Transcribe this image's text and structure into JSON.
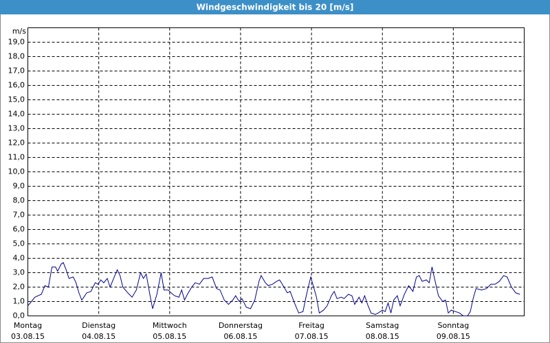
{
  "chart_data": {
    "type": "line",
    "title": "Windgeschwindigkeit bis 20 [m/s]",
    "y_label": "m/s",
    "xlim": [
      0,
      7
    ],
    "xticks": [
      {
        "value": 0,
        "label": "Montag",
        "date": "03.08.15"
      },
      {
        "value": 1,
        "label": "Dienstag",
        "date": "04.08.15"
      },
      {
        "value": 2,
        "label": "Mittwoch",
        "date": "05.08.15"
      },
      {
        "value": 3,
        "label": "Donnerstag",
        "date": "06.08.15"
      },
      {
        "value": 4,
        "label": "Freitag",
        "date": "07.08.15"
      },
      {
        "value": 5,
        "label": "Samstag",
        "date": "08.08.15"
      },
      {
        "value": 6,
        "label": "Sonntag",
        "date": "09.08.15"
      }
    ],
    "ylim": [
      0,
      20
    ],
    "yticks": [
      {
        "value": 0,
        "label": "0,0"
      },
      {
        "value": 1,
        "label": "1,0"
      },
      {
        "value": 2,
        "label": "2,0"
      },
      {
        "value": 3,
        "label": "3,0"
      },
      {
        "value": 4,
        "label": "4,0"
      },
      {
        "value": 5,
        "label": "5,0"
      },
      {
        "value": 6,
        "label": "6,0"
      },
      {
        "value": 7,
        "label": "7,0"
      },
      {
        "value": 8,
        "label": "8,0"
      },
      {
        "value": 9,
        "label": "9,0"
      },
      {
        "value": 10,
        "label": "10,0"
      },
      {
        "value": 11,
        "label": "11,0"
      },
      {
        "value": 12,
        "label": "12,0"
      },
      {
        "value": 13,
        "label": "13,0"
      },
      {
        "value": 14,
        "label": "14,0"
      },
      {
        "value": 15,
        "label": "15,0"
      },
      {
        "value": 16,
        "label": "16,0"
      },
      {
        "value": 17,
        "label": "17,0"
      },
      {
        "value": 18,
        "label": "18,0"
      },
      {
        "value": 19,
        "label": "19,0"
      }
    ],
    "grid": true,
    "series": [
      {
        "color": "#00008b",
        "x": [
          0,
          0.05,
          0.1,
          0.19,
          0.24,
          0.29,
          0.34,
          0.39,
          0.42,
          0.47,
          0.5,
          0.54,
          0.58,
          0.64,
          0.68,
          0.72,
          0.76,
          0.79,
          0.83,
          0.89,
          0.95,
          0.99,
          1.03,
          1.07,
          1.12,
          1.16,
          1.21,
          1.26,
          1.3,
          1.34,
          1.41,
          1.47,
          1.53,
          1.59,
          1.63,
          1.67,
          1.72,
          1.76,
          1.82,
          1.88,
          1.92,
          1.98,
          2.02,
          2.07,
          2.13,
          2.17,
          2.21,
          2.25,
          2.31,
          2.36,
          2.42,
          2.48,
          2.54,
          2.6,
          2.66,
          2.71,
          2.77,
          2.83,
          2.89,
          2.93,
          2.98,
          3.02,
          3.08,
          3.14,
          3.2,
          3.26,
          3.29,
          3.35,
          3.39,
          3.45,
          3.51,
          3.55,
          3.6,
          3.66,
          3.7,
          3.76,
          3.82,
          3.88,
          3.93,
          3.99,
          4.03,
          4.07,
          4.11,
          4.17,
          4.22,
          4.28,
          4.32,
          4.36,
          4.42,
          4.46,
          4.52,
          4.57,
          4.61,
          4.67,
          4.71,
          4.75,
          4.79,
          4.84,
          4.9,
          4.94,
          5.0,
          5.04,
          5.08,
          5.12,
          5.16,
          5.21,
          5.25,
          5.31,
          5.37,
          5.43,
          5.48,
          5.52,
          5.56,
          5.62,
          5.66,
          5.7,
          5.74,
          5.79,
          5.85,
          5.89,
          5.93,
          5.97,
          6.03,
          6.09,
          6.14,
          6.2,
          6.24,
          6.28,
          6.32,
          6.4,
          6.47,
          6.53,
          6.59,
          6.65,
          6.71,
          6.76,
          6.82,
          6.88,
          6.94
        ],
        "values": [
          0.7,
          1.0,
          1.3,
          1.5,
          2.1,
          2.0,
          3.4,
          3.4,
          3.1,
          3.6,
          3.7,
          3.2,
          2.6,
          2.7,
          2.3,
          1.6,
          1.1,
          1.3,
          1.6,
          1.7,
          2.3,
          2.2,
          2.5,
          2.3,
          2.6,
          2.0,
          2.6,
          3.2,
          2.8,
          2.0,
          1.6,
          1.3,
          1.8,
          3.0,
          2.6,
          2.9,
          1.5,
          0.5,
          1.5,
          3.0,
          1.8,
          1.8,
          1.6,
          1.4,
          1.3,
          1.8,
          1.1,
          1.5,
          2.0,
          2.3,
          2.2,
          2.6,
          2.6,
          2.7,
          1.9,
          1.8,
          1.1,
          0.8,
          1.1,
          1.4,
          1.0,
          1.2,
          0.6,
          0.5,
          1.1,
          2.4,
          2.8,
          2.3,
          2.1,
          2.2,
          2.4,
          2.5,
          2.1,
          1.6,
          1.7,
          0.9,
          0.2,
          0.3,
          1.5,
          2.7,
          2.0,
          1.3,
          0.2,
          0.4,
          0.7,
          1.4,
          1.7,
          1.2,
          1.3,
          1.2,
          1.5,
          1.4,
          0.8,
          1.3,
          0.9,
          1.4,
          0.8,
          0.2,
          0.1,
          0.2,
          0.4,
          0.3,
          0.9,
          0.2,
          1.1,
          1.4,
          0.7,
          1.5,
          2.1,
          1.7,
          2.7,
          2.8,
          2.4,
          2.5,
          2.3,
          3.4,
          2.5,
          1.4,
          1.0,
          1.1,
          0.2,
          0.4,
          0.3,
          0.2,
          0.0,
          0.0,
          0.3,
          1.2,
          1.9,
          1.8,
          1.9,
          2.2,
          2.2,
          2.4,
          2.8,
          2.7,
          2.0,
          1.6,
          1.5
        ]
      }
    ]
  }
}
